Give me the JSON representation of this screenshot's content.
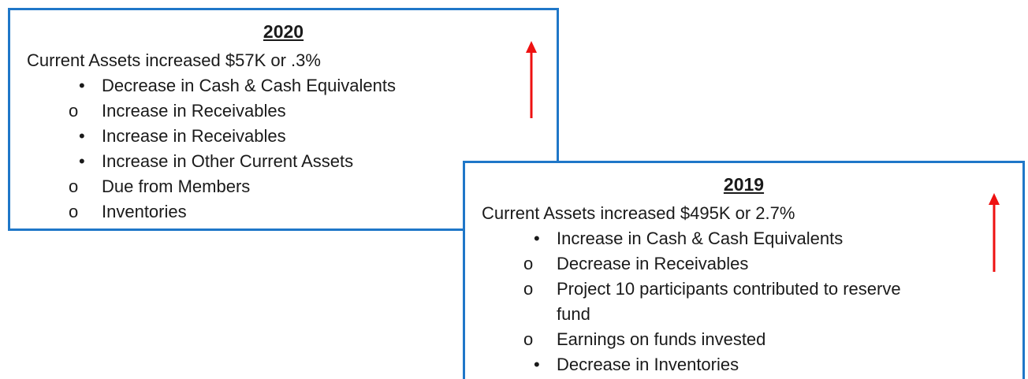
{
  "boxes": [
    {
      "title": "2020",
      "summary": "Current Assets increased $57K or .3%",
      "items": [
        {
          "text": "Decrease in Cash & Cash Equivalents",
          "sub": [
            "Increase in Receivables"
          ]
        },
        {
          "text": "Increase in Receivables",
          "sub": []
        },
        {
          "text": "Increase in Other Current Assets",
          "sub": [
            "Due from Members",
            "Inventories"
          ]
        }
      ]
    },
    {
      "title": "2019",
      "summary": "Current Assets increased $495K or 2.7%",
      "items": [
        {
          "text": "Increase in Cash & Cash Equivalents",
          "sub": [
            "Decrease in Receivables",
            "Project 10 participants contributed to reserve fund",
            "Earnings on funds invested"
          ]
        },
        {
          "text": "Decrease in Inventories",
          "sub": []
        }
      ]
    }
  ]
}
